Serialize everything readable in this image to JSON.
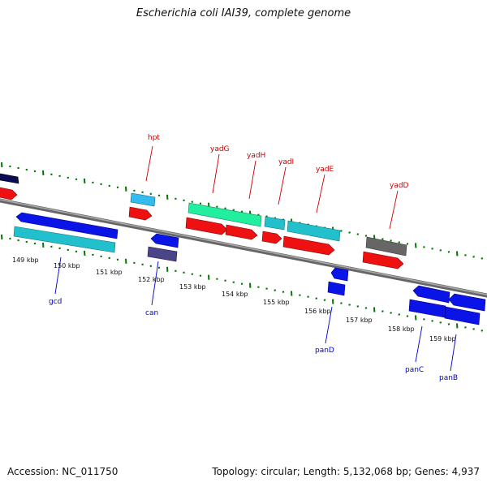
{
  "title": "Escherichia coli IAI39, complete genome",
  "footer": {
    "accession": "Accession: NC_011750",
    "summary": "Topology: circular; Length: 5,132,068 bp; Genes: 4,937"
  },
  "colors": {
    "forward_label": "#cc0000",
    "reverse_label": "#0000cc",
    "backbone": "#888888",
    "ticks": "#007700",
    "blue": "#0a14e6",
    "red": "#ee1111",
    "cyan": "#22c0cc",
    "green_cyan": "#22eea0",
    "navy": "#0a0a55",
    "slate": "#4a4488",
    "gray": "#666666",
    "light_blue": "#33bbee"
  },
  "scale_labels": [
    "149 kbp",
    "150 kbp",
    "151 kbp",
    "152 kbp",
    "153 kbp",
    "154 kbp",
    "155 kbp",
    "156 kbp",
    "157 kbp",
    "158 kbp",
    "159 kbp"
  ],
  "gene_labels": {
    "forward": [
      "hpt",
      "yadG",
      "yadH",
      "yadI",
      "yadE",
      "yadD"
    ],
    "reverse": [
      "gcd",
      "can",
      "panD",
      "panC",
      "panB"
    ]
  }
}
